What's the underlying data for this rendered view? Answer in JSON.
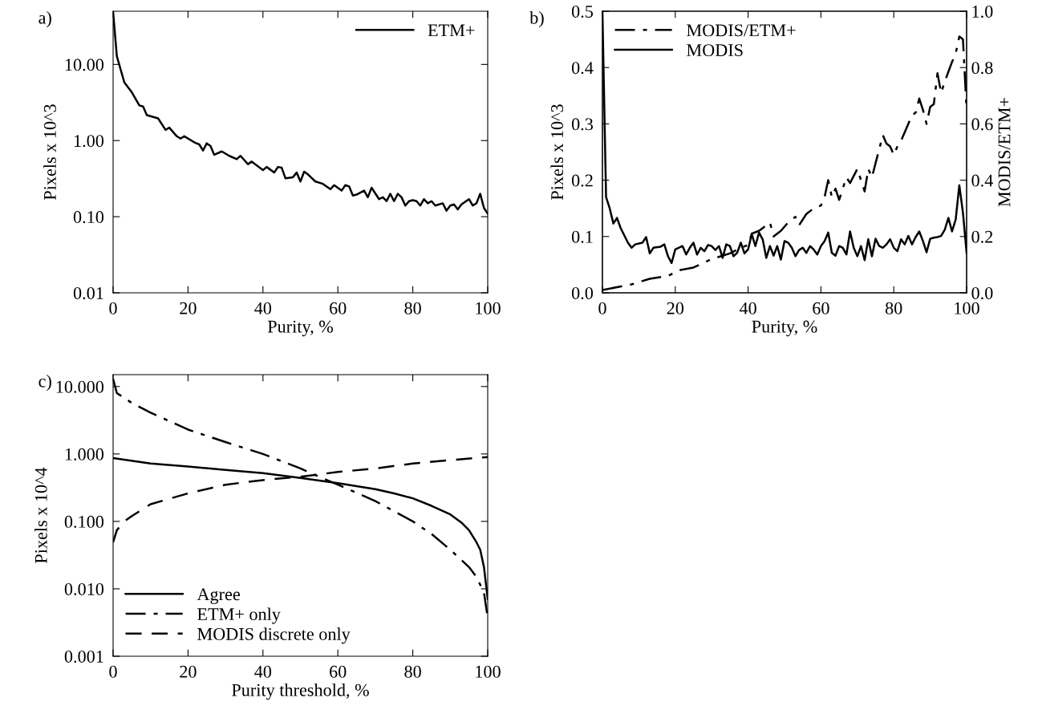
{
  "chart_data": [
    {
      "type": "line",
      "title": "a)",
      "xlabel": "Purity, %",
      "ylabel": "Pixels x 10^3",
      "log": "y",
      "legend": "top right",
      "grid": false,
      "xlim": [
        0,
        100
      ],
      "xticks": [
        0,
        20,
        40,
        60,
        80,
        100
      ],
      "ylim": [
        0.01,
        50
      ],
      "yticks": [
        {
          "value": 0.01,
          "label": "0.01"
        },
        {
          "value": 0.1,
          "label": "0.10"
        },
        {
          "value": 1,
          "label": "1.00"
        },
        {
          "value": 10,
          "label": "10.00"
        }
      ],
      "series": [
        {
          "name": "ETM+",
          "color": "#000000",
          "line_style": "solid",
          "x": [
            0,
            1,
            3,
            5,
            7,
            8,
            9,
            12,
            14,
            15,
            17,
            18,
            19,
            22,
            23,
            24,
            25,
            26,
            27,
            29,
            31,
            33,
            34,
            36,
            37,
            40,
            41,
            43,
            44,
            45,
            46,
            48,
            49,
            50,
            51,
            52,
            54,
            56,
            58,
            59,
            61,
            62,
            63,
            64,
            65,
            67,
            68,
            69,
            71,
            72,
            73,
            74,
            75,
            76,
            77,
            78,
            79,
            80,
            81,
            82,
            83,
            84,
            85,
            86,
            88,
            89,
            90,
            91,
            92,
            93,
            95,
            96,
            97,
            98,
            99,
            100
          ],
          "values": [
            49,
            12.8,
            5.8,
            4.3,
            2.9,
            2.8,
            2.16,
            1.96,
            1.38,
            1.48,
            1.14,
            1.06,
            1.14,
            0.93,
            0.89,
            0.74,
            0.92,
            0.85,
            0.65,
            0.72,
            0.63,
            0.57,
            0.63,
            0.49,
            0.53,
            0.41,
            0.45,
            0.38,
            0.45,
            0.44,
            0.32,
            0.33,
            0.38,
            0.29,
            0.39,
            0.36,
            0.29,
            0.27,
            0.23,
            0.26,
            0.22,
            0.26,
            0.25,
            0.19,
            0.195,
            0.22,
            0.18,
            0.24,
            0.17,
            0.18,
            0.16,
            0.2,
            0.16,
            0.2,
            0.18,
            0.14,
            0.16,
            0.165,
            0.16,
            0.14,
            0.17,
            0.15,
            0.16,
            0.14,
            0.15,
            0.12,
            0.14,
            0.145,
            0.125,
            0.145,
            0.17,
            0.14,
            0.15,
            0.2,
            0.13,
            0.11
          ]
        }
      ]
    },
    {
      "type": "line",
      "title": "b)",
      "xlabel": "Purity, %",
      "ylabel": "Pixels x 10^3",
      "y2label": "MODIS/ETM+",
      "legend": "top left",
      "grid": false,
      "xlim": [
        0,
        100
      ],
      "xticks": [
        0,
        20,
        40,
        60,
        80,
        100
      ],
      "ylim": [
        0,
        0.5
      ],
      "yticks": [
        {
          "value": 0,
          "label": "0.0"
        },
        0.1,
        0.2,
        0.3,
        0.4,
        0.5
      ],
      "y2lim": [
        0,
        1.0
      ],
      "y2ticks": [
        {
          "value": 0,
          "label": "0.0"
        },
        0.2,
        0.4,
        0.6,
        0.8,
        {
          "value": 1,
          "label": "1.0"
        }
      ],
      "series": [
        {
          "name": "MODIS/ETM+",
          "color": "#000000",
          "line_style": "dashdot",
          "axis": "y2",
          "x": [
            0,
            8,
            13,
            18,
            21,
            25,
            30,
            35,
            38,
            40,
            41,
            43,
            45,
            46,
            47,
            49,
            51,
            52,
            53,
            54,
            56,
            58,
            60,
            61,
            62,
            63,
            64,
            65,
            67,
            68,
            70,
            71,
            72,
            73,
            74,
            75,
            77,
            78,
            79,
            80,
            81,
            82,
            83,
            85,
            86,
            87,
            88,
            89,
            90,
            91,
            92,
            93,
            94,
            96,
            97,
            98,
            99,
            100
          ],
          "values": [
            0.01,
            0.03,
            0.05,
            0.06,
            0.08,
            0.09,
            0.12,
            0.14,
            0.16,
            0.17,
            0.21,
            0.22,
            0.24,
            0.25,
            0.2,
            0.22,
            0.25,
            0.26,
            0.27,
            0.24,
            0.28,
            0.3,
            0.31,
            0.34,
            0.4,
            0.34,
            0.37,
            0.33,
            0.41,
            0.39,
            0.44,
            0.4,
            0.36,
            0.44,
            0.41,
            0.46,
            0.56,
            0.53,
            0.52,
            0.49,
            0.52,
            0.54,
            0.57,
            0.63,
            0.64,
            0.69,
            0.65,
            0.6,
            0.66,
            0.67,
            0.78,
            0.71,
            0.75,
            0.82,
            0.85,
            0.91,
            0.9,
            0.65
          ]
        },
        {
          "name": "MODIS",
          "color": "#000000",
          "line_style": "solid",
          "x": [
            0,
            1,
            2,
            3,
            4,
            5,
            7,
            8,
            9,
            11,
            12,
            13,
            14,
            16,
            17,
            18,
            19,
            20,
            22,
            23,
            24,
            25,
            26,
            27,
            28,
            29,
            30,
            31,
            32,
            33,
            34,
            35,
            36,
            37,
            38,
            39,
            40,
            41,
            42,
            43,
            44,
            45,
            46,
            47,
            48,
            49,
            50,
            51,
            52,
            53,
            54,
            55,
            56,
            57,
            58,
            59,
            60,
            61,
            62,
            63,
            64,
            65,
            66,
            67,
            68,
            69,
            70,
            71,
            72,
            73,
            74,
            75,
            76,
            77,
            78,
            79,
            80,
            81,
            82,
            83,
            84,
            85,
            86,
            87,
            88,
            89,
            90,
            91,
            92,
            93,
            94,
            95,
            96,
            97,
            98,
            99,
            100
          ],
          "values": [
            0.5,
            0.17,
            0.15,
            0.123,
            0.133,
            0.115,
            0.089,
            0.08,
            0.086,
            0.089,
            0.099,
            0.07,
            0.08,
            0.082,
            0.086,
            0.065,
            0.053,
            0.077,
            0.083,
            0.068,
            0.08,
            0.089,
            0.068,
            0.08,
            0.074,
            0.085,
            0.083,
            0.076,
            0.083,
            0.062,
            0.086,
            0.083,
            0.065,
            0.071,
            0.089,
            0.07,
            0.077,
            0.104,
            0.083,
            0.107,
            0.095,
            0.062,
            0.083,
            0.066,
            0.083,
            0.059,
            0.092,
            0.089,
            0.08,
            0.065,
            0.076,
            0.08,
            0.071,
            0.083,
            0.077,
            0.068,
            0.083,
            0.092,
            0.107,
            0.071,
            0.066,
            0.083,
            0.08,
            0.068,
            0.109,
            0.08,
            0.065,
            0.083,
            0.058,
            0.095,
            0.065,
            0.096,
            0.083,
            0.08,
            0.086,
            0.095,
            0.08,
            0.074,
            0.095,
            0.086,
            0.101,
            0.086,
            0.099,
            0.109,
            0.092,
            0.072,
            0.096,
            0.098,
            0.099,
            0.101,
            0.112,
            0.133,
            0.109,
            0.13,
            0.191,
            0.142,
            0.071
          ]
        }
      ]
    },
    {
      "type": "line",
      "title": "c)",
      "xlabel": "Purity threshold, %",
      "ylabel": "Pixels x 10^4",
      "log": "y",
      "legend": "bottom left",
      "grid": false,
      "xlim": [
        0,
        100
      ],
      "xticks": [
        0,
        20,
        40,
        60,
        80,
        100
      ],
      "ylim": [
        0.001,
        15
      ],
      "yticks": [
        {
          "value": 0.001,
          "label": "0.001"
        },
        {
          "value": 0.01,
          "label": "0.010"
        },
        {
          "value": 0.1,
          "label": "0.100"
        },
        {
          "value": 1,
          "label": "1.000"
        },
        {
          "value": 10,
          "label": "10.000"
        }
      ],
      "series": [
        {
          "name": "Agree",
          "color": "#000000",
          "line_style": "solid",
          "x": [
            0,
            10,
            20,
            30,
            40,
            50,
            60,
            70,
            75,
            80,
            85,
            90,
            93,
            95,
            97,
            98,
            99,
            100
          ],
          "values": [
            0.87,
            0.72,
            0.65,
            0.58,
            0.52,
            0.44,
            0.37,
            0.3,
            0.26,
            0.22,
            0.17,
            0.127,
            0.096,
            0.074,
            0.049,
            0.038,
            0.021,
            0.007
          ]
        },
        {
          "name": "ETM+ only",
          "color": "#000000",
          "line_style": "dashdot",
          "x": [
            0,
            1,
            5,
            10,
            20,
            30,
            40,
            50,
            55,
            60,
            70,
            80,
            85,
            90,
            95,
            97,
            99,
            100
          ],
          "values": [
            13,
            8,
            5.7,
            4.1,
            2.3,
            1.5,
            1.0,
            0.61,
            0.46,
            0.35,
            0.2,
            0.1,
            0.065,
            0.038,
            0.021,
            0.015,
            0.0088,
            0.0037
          ]
        },
        {
          "name": "MODIS discrete only",
          "color": "#000000",
          "line_style": "dashed",
          "x": [
            0,
            1,
            3,
            5,
            10,
            20,
            30,
            40,
            50,
            60,
            70,
            80,
            90,
            100
          ],
          "values": [
            0.049,
            0.074,
            0.1,
            0.12,
            0.18,
            0.26,
            0.35,
            0.41,
            0.46,
            0.54,
            0.61,
            0.72,
            0.81,
            0.9
          ]
        }
      ]
    }
  ]
}
